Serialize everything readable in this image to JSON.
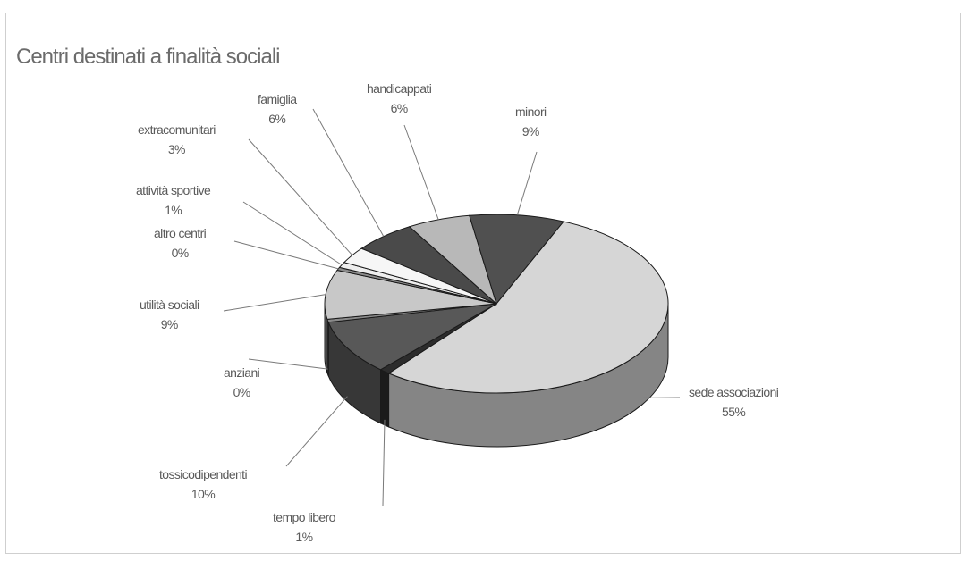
{
  "chart_data": {
    "type": "pie",
    "title": "Centri destinati a finalità sociali",
    "slices": [
      {
        "name": "sede associazioni",
        "value": 55,
        "label": "55%",
        "color": "#d6d6d6"
      },
      {
        "name": "tempo libero",
        "value": 1,
        "label": "1%",
        "color": "#2c2c2c"
      },
      {
        "name": "tossicodipendenti",
        "value": 10,
        "label": "10%",
        "color": "#585858"
      },
      {
        "name": "anziani",
        "value": 0,
        "label": "0%",
        "color": "#8a8a8a"
      },
      {
        "name": "utilità sociali",
        "value": 9,
        "label": "9%",
        "color": "#c8c8c8"
      },
      {
        "name": "altro centri",
        "value": 0,
        "label": "0%",
        "color": "#8c8c8c"
      },
      {
        "name": "attività sportive",
        "value": 1,
        "label": "1%",
        "color": "#eeeeee"
      },
      {
        "name": "extracomunitari",
        "value": 3,
        "label": "3%",
        "color": "#f6f6f6"
      },
      {
        "name": "famiglia",
        "value": 6,
        "label": "6%",
        "color": "#4a4a4a"
      },
      {
        "name": "handicappati",
        "value": 6,
        "label": "6%",
        "color": "#b8b8b8"
      },
      {
        "name": "minori",
        "value": 9,
        "label": "9%",
        "color": "#505050"
      }
    ],
    "legend": "none",
    "three_d": true
  }
}
